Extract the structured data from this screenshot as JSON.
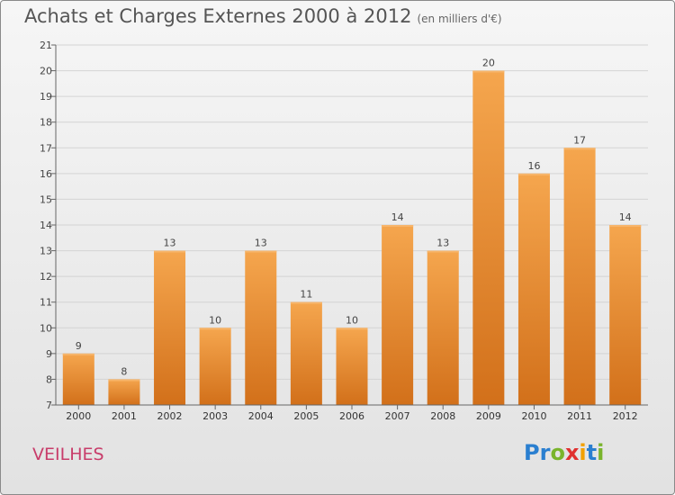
{
  "header": {
    "title": "Achats et Charges Externes 2000 à 2012",
    "subtitle": "(en milliers d'€)"
  },
  "footer": {
    "town": "VEILHES",
    "logo_text": "Proxiti",
    "logo_colors": [
      "#2a7fd0",
      "#2a7fd0",
      "#7ab42c",
      "#e03030",
      "#f2a000",
      "#2a7fd0",
      "#7ab42c"
    ]
  },
  "chart_data": {
    "type": "bar",
    "categories": [
      "2000",
      "2001",
      "2002",
      "2003",
      "2004",
      "2005",
      "2006",
      "2007",
      "2008",
      "2009",
      "2010",
      "2011",
      "2012"
    ],
    "values": [
      9,
      8,
      13,
      10,
      13,
      11,
      10,
      14,
      13,
      20,
      16,
      17,
      14
    ],
    "data_labels": [
      "9",
      "8",
      "13",
      "10",
      "13",
      "11",
      "10",
      "14",
      "13",
      "20",
      "16",
      "17",
      "14"
    ],
    "ylim": [
      7,
      21
    ],
    "yticks": [
      "7",
      "8",
      "9",
      "10",
      "11",
      "12",
      "13",
      "14",
      "15",
      "16",
      "17",
      "18",
      "19",
      "20",
      "21"
    ],
    "grid": true,
    "bar_color_top": "#f5a64e",
    "bar_color_bottom": "#d2701a"
  }
}
